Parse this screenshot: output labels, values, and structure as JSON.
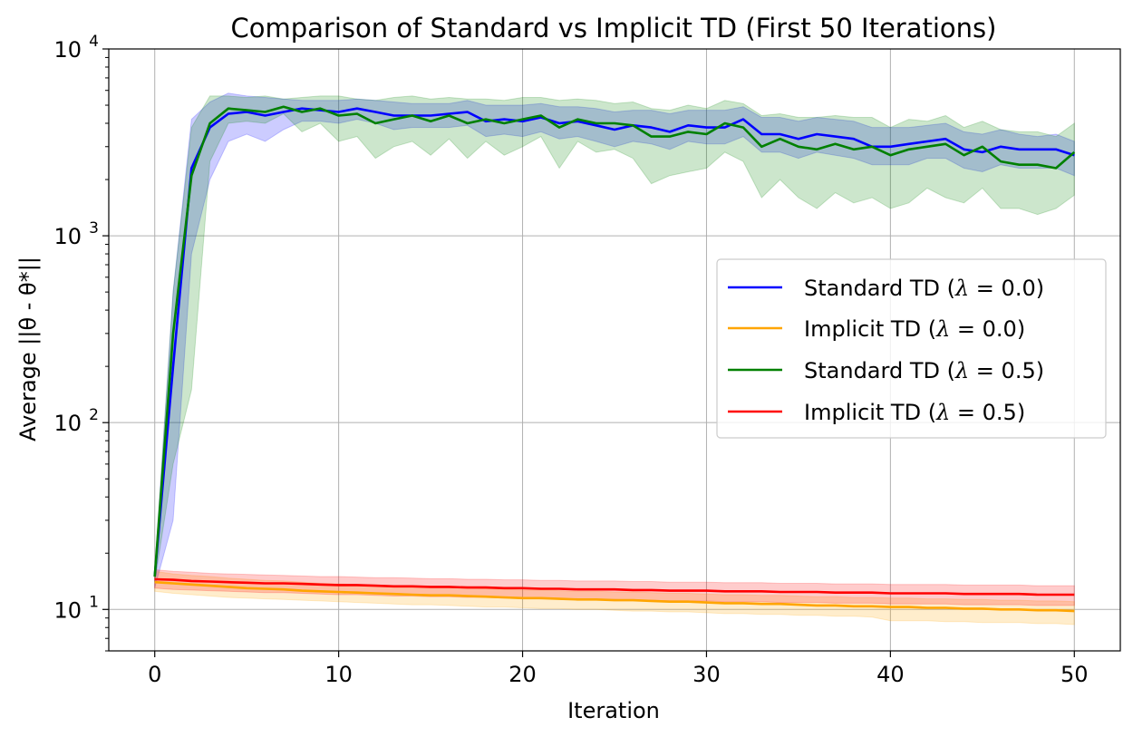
{
  "chart_data": {
    "type": "line",
    "title": "Comparison of Standard vs Implicit TD (First 50 Iterations)",
    "xlabel": "Iteration",
    "ylabel": "Average ||θ - θ*||",
    "xlim": [
      -2.5,
      52.5
    ],
    "ylim": [
      6,
      10000
    ],
    "yscale": "log",
    "grid": true,
    "legend_position": "center-right",
    "x_ticks": [
      {
        "value": 0,
        "label": "0"
      },
      {
        "value": 10,
        "label": "10"
      },
      {
        "value": 20,
        "label": "20"
      },
      {
        "value": 30,
        "label": "30"
      },
      {
        "value": 40,
        "label": "40"
      },
      {
        "value": 50,
        "label": "50"
      }
    ],
    "y_ticks": [
      {
        "value": 10,
        "base": "10",
        "exp": "1"
      },
      {
        "value": 100,
        "base": "10",
        "exp": "2"
      },
      {
        "value": 1000,
        "base": "10",
        "exp": "3"
      },
      {
        "value": 10000,
        "base": "10",
        "exp": "4"
      }
    ],
    "x": [
      0,
      1,
      2,
      3,
      4,
      5,
      6,
      7,
      8,
      9,
      10,
      11,
      12,
      13,
      14,
      15,
      16,
      17,
      18,
      19,
      20,
      21,
      22,
      23,
      24,
      25,
      26,
      27,
      28,
      29,
      30,
      31,
      32,
      33,
      34,
      35,
      36,
      37,
      38,
      39,
      40,
      41,
      42,
      43,
      44,
      45,
      46,
      47,
      48,
      49,
      50
    ],
    "series": [
      {
        "name": "Standard TD (λ = 0.0)",
        "color": "#0000ff",
        "values": [
          15,
          200,
          2300,
          3800,
          4500,
          4600,
          4400,
          4600,
          4800,
          4700,
          4600,
          4800,
          4600,
          4400,
          4400,
          4400,
          4500,
          4600,
          4100,
          4200,
          4100,
          4300,
          4000,
          4100,
          3900,
          3700,
          3900,
          3800,
          3600,
          3900,
          3800,
          3800,
          4200,
          3500,
          3500,
          3300,
          3500,
          3400,
          3300,
          3000,
          3000,
          3100,
          3200,
          3300,
          2900,
          2800,
          3000,
          2900,
          2900,
          2900,
          2700
        ],
        "band_upper": [
          16,
          500,
          4200,
          5200,
          5800,
          5600,
          5500,
          5400,
          5300,
          5300,
          5300,
          5400,
          5300,
          5200,
          5100,
          5100,
          5100,
          5300,
          5000,
          5000,
          5000,
          5100,
          4900,
          4900,
          4800,
          4600,
          4700,
          4700,
          4500,
          4700,
          4700,
          4700,
          4900,
          4300,
          4300,
          4100,
          4300,
          4200,
          4100,
          3800,
          3800,
          3800,
          3900,
          4000,
          3600,
          3500,
          3700,
          3500,
          3400,
          3500,
          3200
        ],
        "band_lower": [
          13,
          30,
          800,
          2000,
          3200,
          3500,
          3200,
          3700,
          4100,
          4100,
          4000,
          4200,
          4000,
          3700,
          3800,
          3800,
          3800,
          3900,
          3400,
          3500,
          3400,
          3600,
          3300,
          3400,
          3200,
          3000,
          3200,
          3100,
          2900,
          3200,
          3100,
          3100,
          3400,
          2800,
          2800,
          2600,
          2800,
          2700,
          2600,
          2400,
          2400,
          2400,
          2600,
          2600,
          2300,
          2200,
          2400,
          2300,
          2300,
          2300,
          2100
        ]
      },
      {
        "name": "Implicit TD (λ = 0.0)",
        "color": "#ffa500",
        "values": [
          14,
          13.8,
          13.6,
          13.4,
          13.2,
          13.0,
          12.9,
          12.8,
          12.6,
          12.5,
          12.4,
          12.3,
          12.2,
          12.1,
          12.0,
          11.9,
          11.9,
          11.8,
          11.7,
          11.6,
          11.5,
          11.5,
          11.4,
          11.3,
          11.3,
          11.2,
          11.2,
          11.1,
          11.0,
          11.0,
          10.9,
          10.8,
          10.8,
          10.7,
          10.7,
          10.6,
          10.5,
          10.5,
          10.4,
          10.4,
          10.3,
          10.3,
          10.2,
          10.2,
          10.1,
          10.1,
          10.0,
          10.0,
          9.9,
          9.9,
          9.8
        ],
        "band_upper": [
          16,
          15.5,
          15.2,
          15.0,
          14.7,
          14.5,
          14.3,
          14.2,
          14.0,
          13.8,
          13.7,
          13.6,
          13.5,
          13.4,
          13.3,
          13.2,
          13.1,
          13.0,
          12.9,
          12.8,
          12.7,
          12.7,
          12.6,
          12.5,
          12.5,
          12.4,
          12.4,
          12.3,
          12.2,
          12.2,
          12.1,
          12.0,
          12.0,
          11.9,
          11.9,
          11.8,
          11.7,
          11.7,
          11.6,
          11.6,
          11.5,
          11.5,
          11.4,
          11.4,
          11.3,
          11.3,
          11.2,
          11.2,
          11.1,
          11.1,
          11.0
        ],
        "band_lower": [
          12.5,
          12.2,
          12.0,
          11.8,
          11.6,
          11.5,
          11.4,
          11.3,
          11.2,
          11.1,
          11.0,
          10.9,
          10.8,
          10.7,
          10.6,
          10.6,
          10.5,
          10.4,
          10.3,
          10.3,
          10.2,
          10.1,
          10.1,
          10.0,
          10.0,
          9.9,
          9.8,
          9.8,
          9.7,
          9.7,
          9.6,
          9.5,
          9.5,
          9.4,
          9.4,
          9.3,
          9.3,
          9.2,
          9.2,
          9.1,
          8.7,
          8.7,
          8.7,
          8.6,
          8.6,
          8.5,
          8.5,
          8.5,
          8.4,
          8.4,
          8.3
        ]
      },
      {
        "name": "Standard TD (λ = 0.5)",
        "color": "#008000",
        "values": [
          15,
          300,
          2100,
          4000,
          4800,
          4700,
          4600,
          4900,
          4600,
          4800,
          4400,
          4500,
          4000,
          4200,
          4400,
          4100,
          4400,
          4000,
          4200,
          4000,
          4200,
          4400,
          3800,
          4200,
          4000,
          4000,
          3900,
          3400,
          3400,
          3600,
          3500,
          4000,
          3800,
          3000,
          3300,
          3000,
          2900,
          3100,
          2900,
          3000,
          2700,
          2900,
          3000,
          3100,
          2700,
          3000,
          2500,
          2400,
          2400,
          2300,
          2800
        ],
        "band_upper": [
          16,
          500,
          3800,
          5600,
          5600,
          5500,
          5600,
          5400,
          5500,
          5600,
          5600,
          5400,
          5300,
          5500,
          5600,
          5400,
          5500,
          5400,
          5400,
          5300,
          5500,
          5500,
          5300,
          5400,
          5300,
          5100,
          5200,
          4800,
          4700,
          5000,
          4800,
          5300,
          5100,
          4400,
          4500,
          4300,
          4300,
          4400,
          4300,
          4300,
          3800,
          4200,
          4100,
          4400,
          3800,
          4100,
          3700,
          3600,
          3600,
          3400,
          4000
        ],
        "band_lower": [
          14,
          60,
          150,
          2500,
          4000,
          4100,
          4000,
          4500,
          3600,
          4000,
          3200,
          3400,
          2600,
          3000,
          3200,
          2700,
          3300,
          2600,
          3200,
          2700,
          3000,
          3400,
          2300,
          3200,
          2800,
          2900,
          2600,
          1900,
          2100,
          2200,
          2300,
          2800,
          2500,
          1600,
          2000,
          1600,
          1400,
          1700,
          1500,
          1600,
          1400,
          1500,
          1800,
          1600,
          1500,
          1800,
          1400,
          1400,
          1300,
          1400,
          1650
        ]
      },
      {
        "name": "Implicit TD (λ = 0.5)",
        "color": "#ff0000",
        "values": [
          14.5,
          14.4,
          14.2,
          14.1,
          14.0,
          13.9,
          13.8,
          13.8,
          13.7,
          13.6,
          13.5,
          13.5,
          13.4,
          13.3,
          13.3,
          13.2,
          13.2,
          13.1,
          13.1,
          13.0,
          13.0,
          12.9,
          12.9,
          12.8,
          12.8,
          12.8,
          12.7,
          12.7,
          12.6,
          12.6,
          12.6,
          12.5,
          12.5,
          12.5,
          12.4,
          12.4,
          12.4,
          12.3,
          12.3,
          12.3,
          12.2,
          12.2,
          12.2,
          12.2,
          12.1,
          12.1,
          12.1,
          12.1,
          12.0,
          12.0,
          12.0
        ],
        "band_upper": [
          16.3,
          16.0,
          15.8,
          15.6,
          15.5,
          15.4,
          15.3,
          15.2,
          15.1,
          15.0,
          15.0,
          14.9,
          14.8,
          14.8,
          14.7,
          14.6,
          14.6,
          14.5,
          14.5,
          14.4,
          14.4,
          14.3,
          14.3,
          14.2,
          14.2,
          14.2,
          14.1,
          14.1,
          14.0,
          14.0,
          14.0,
          13.9,
          13.9,
          13.9,
          13.8,
          13.8,
          13.8,
          13.7,
          13.7,
          13.7,
          13.6,
          13.6,
          13.6,
          13.6,
          13.5,
          13.5,
          13.5,
          13.5,
          13.4,
          13.4,
          13.4
        ],
        "band_lower": [
          13.0,
          12.8,
          12.7,
          12.6,
          12.5,
          12.4,
          12.3,
          12.3,
          12.2,
          12.1,
          12.0,
          12.0,
          11.9,
          11.8,
          11.8,
          11.7,
          11.7,
          11.6,
          11.6,
          11.5,
          11.5,
          11.4,
          11.4,
          11.3,
          11.3,
          11.3,
          11.2,
          11.2,
          11.1,
          11.1,
          11.1,
          11.0,
          11.0,
          11.0,
          10.9,
          10.9,
          10.9,
          10.8,
          10.8,
          10.8,
          10.7,
          10.7,
          10.7,
          10.7,
          10.6,
          10.6,
          10.6,
          10.6,
          10.5,
          10.5,
          10.5
        ]
      }
    ],
    "legend": [
      {
        "prefix": "Standard TD (",
        "lambda": "λ",
        "eq": " = ",
        "val": "0.0",
        "suffix": ")"
      },
      {
        "prefix": "Implicit TD (",
        "lambda": "λ",
        "eq": " = ",
        "val": "0.0",
        "suffix": ")"
      },
      {
        "prefix": "Standard TD (",
        "lambda": "λ",
        "eq": " = ",
        "val": "0.5",
        "suffix": ")"
      },
      {
        "prefix": "Implicit TD (",
        "lambda": "λ",
        "eq": " = ",
        "val": "0.5",
        "suffix": ")"
      }
    ]
  }
}
